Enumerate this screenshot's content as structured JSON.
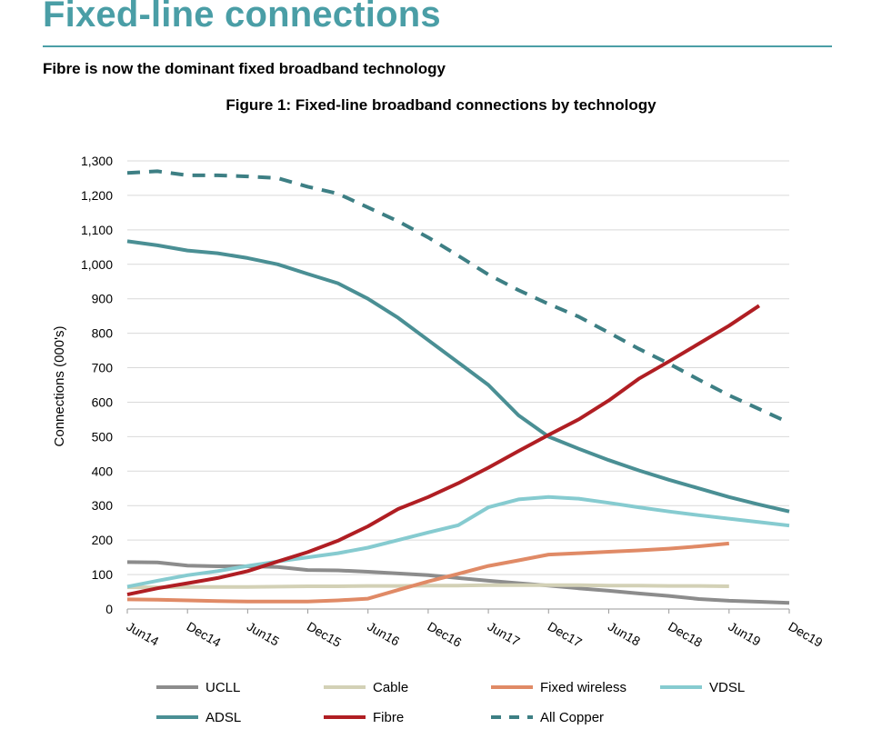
{
  "header": {
    "title": "Fixed-line connections",
    "subtitle": "Fibre is now the dominant fixed broadband technology"
  },
  "chart_data": {
    "type": "line",
    "title": "Figure 1: Fixed-line broadband connections by technology",
    "xlabel": "",
    "ylabel": "Connections (000's)",
    "ylim": [
      0,
      1300
    ],
    "yticks": [
      0,
      100,
      200,
      300,
      400,
      500,
      600,
      700,
      800,
      900,
      1000,
      1100,
      1200,
      1300
    ],
    "ytick_labels": [
      "0",
      "100",
      "200",
      "300",
      "400",
      "500",
      "600",
      "700",
      "800",
      "900",
      "1,000",
      "1,100",
      "1,200",
      "1,300"
    ],
    "x": [
      "Jun14",
      "Sep14",
      "Dec14",
      "Mar15",
      "Jun15",
      "Sep15",
      "Dec15",
      "Mar16",
      "Jun16",
      "Sep16",
      "Dec16",
      "Mar17",
      "Jun17",
      "Sep17",
      "Dec17",
      "Mar18",
      "Jun18",
      "Sep18",
      "Dec18",
      "Mar19",
      "Jun19",
      "Sep19",
      "Dec19"
    ],
    "x_tick_labels": [
      "Jun14",
      "Dec14",
      "Jun15",
      "Dec15",
      "Jun16",
      "Dec16",
      "Jun17",
      "Dec17",
      "Jun18",
      "Dec18",
      "Jun19",
      "Dec19"
    ],
    "grid": true,
    "legend_position": "bottom",
    "series": [
      {
        "name": "UCLL",
        "color": "#8c8c8c",
        "dashed": false,
        "values": [
          136,
          135,
          126,
          124,
          124,
          122,
          113,
          112,
          108,
          103,
          98,
          90,
          82,
          75,
          68,
          60,
          53,
          45,
          38,
          29,
          24,
          21,
          18
        ]
      },
      {
        "name": "Cable",
        "color": "#d3d1b6",
        "dashed": false,
        "values": [
          63,
          63,
          64,
          64,
          64,
          65,
          66,
          66,
          67,
          67,
          68,
          68,
          69,
          69,
          69,
          69,
          68,
          68,
          67,
          67,
          66,
          null,
          null
        ]
      },
      {
        "name": "Fixed wireless",
        "color": "#e08a66",
        "dashed": false,
        "values": [
          28,
          27,
          25,
          23,
          22,
          22,
          22,
          25,
          30,
          55,
          80,
          102,
          125,
          141,
          158,
          162,
          166,
          170,
          175,
          182,
          190,
          null,
          null
        ]
      },
      {
        "name": "VDSL",
        "color": "#86cbd0",
        "dashed": false,
        "values": [
          65,
          82,
          98,
          110,
          125,
          138,
          150,
          162,
          178,
          200,
          222,
          243,
          295,
          318,
          325,
          320,
          308,
          295,
          283,
          272,
          262,
          252,
          242
        ]
      },
      {
        "name": "ADSL",
        "color": "#4a8f94",
        "dashed": false,
        "values": [
          1067,
          1055,
          1040,
          1032,
          1018,
          1000,
          972,
          945,
          900,
          845,
          780,
          715,
          650,
          562,
          500,
          465,
          432,
          402,
          375,
          350,
          325,
          303,
          283
        ]
      },
      {
        "name": "Fibre",
        "color": "#b01e23",
        "dashed": false,
        "values": [
          42,
          60,
          75,
          90,
          110,
          138,
          165,
          198,
          240,
          290,
          325,
          365,
          410,
          458,
          505,
          550,
          605,
          668,
          718,
          770,
          822,
          880,
          null
        ]
      },
      {
        "name": "All Copper",
        "color": "#3d7f84",
        "dashed": true,
        "values": [
          1265,
          1270,
          1258,
          1258,
          1255,
          1250,
          1225,
          1205,
          1165,
          1125,
          1078,
          1025,
          970,
          925,
          885,
          848,
          802,
          755,
          712,
          665,
          620,
          580,
          540
        ]
      }
    ]
  }
}
